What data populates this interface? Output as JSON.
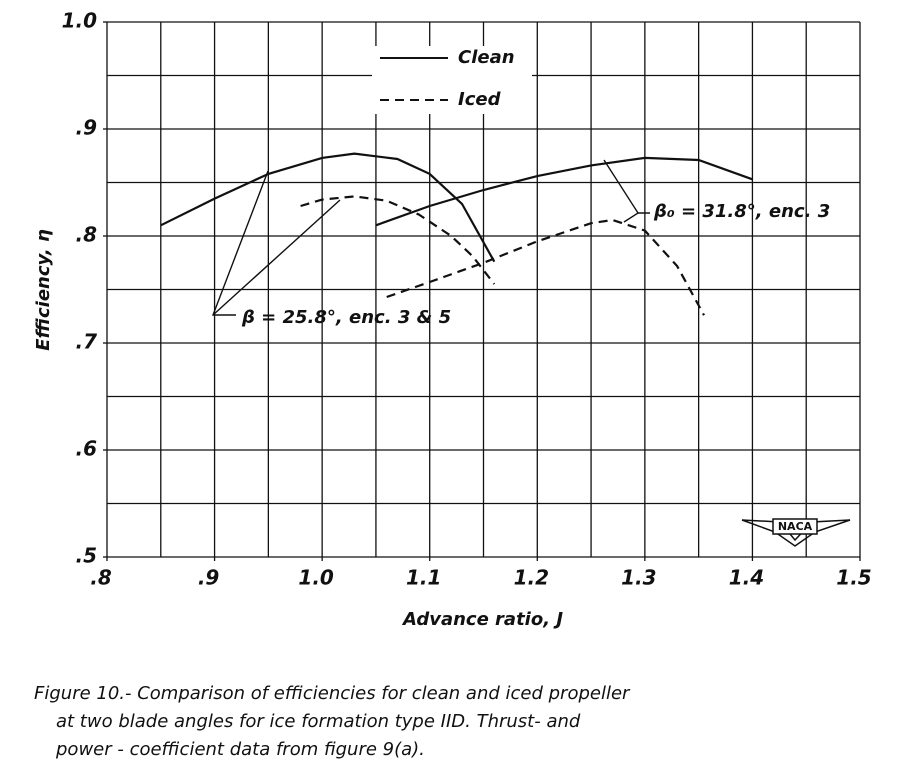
{
  "chart_data": {
    "type": "line",
    "x_label": "Advance ratio, J",
    "y_label": "Efficiency, η",
    "xlim": [
      0.8,
      1.5
    ],
    "ylim": [
      0.5,
      1.0
    ],
    "xticks": [
      {
        "value": 0.8,
        "label": ".8"
      },
      {
        "value": 0.9,
        "label": ".9"
      },
      {
        "value": 1.0,
        "label": "1.0"
      },
      {
        "value": 1.1,
        "label": "1.1"
      },
      {
        "value": 1.2,
        "label": "1.2"
      },
      {
        "value": 1.3,
        "label": "1.3"
      },
      {
        "value": 1.4,
        "label": "1.4"
      },
      {
        "value": 1.5,
        "label": "1.5"
      }
    ],
    "yticks": [
      {
        "value": 0.5,
        "label": ".5"
      },
      {
        "value": 0.6,
        "label": ".6"
      },
      {
        "value": 0.7,
        "label": ".7"
      },
      {
        "value": 0.8,
        "label": ".8"
      },
      {
        "value": 0.9,
        "label": ".9"
      },
      {
        "value": 1.0,
        "label": "1.0"
      }
    ],
    "xgrid": [
      0.8,
      0.85,
      0.9,
      0.95,
      1.0,
      1.05,
      1.1,
      1.15,
      1.2,
      1.25,
      1.3,
      1.35,
      1.4,
      1.45,
      1.5
    ],
    "ygrid": [
      0.5,
      0.55,
      0.6,
      0.65,
      0.7,
      0.75,
      0.8,
      0.85,
      0.9,
      0.95,
      1.0
    ],
    "grid": true,
    "series": [
      {
        "name": "Clean",
        "color": "#111111",
        "dash": "solid",
        "x": [
          0.85,
          0.9,
          0.95,
          1.0,
          1.03,
          1.07,
          1.1,
          1.13,
          1.16,
          null,
          1.05,
          1.1,
          1.15,
          1.2,
          1.25,
          1.3,
          1.35,
          1.4
        ],
        "values": [
          0.81,
          0.835,
          0.858,
          0.873,
          0.877,
          0.872,
          0.858,
          0.83,
          0.776,
          null,
          0.81,
          0.828,
          0.843,
          0.856,
          0.866,
          0.873,
          0.871,
          0.853
        ]
      },
      {
        "name": "Iced",
        "color": "#111111",
        "dash": "dashed",
        "x": [
          0.98,
          1.0,
          1.03,
          1.06,
          1.09,
          1.12,
          1.14,
          1.16,
          null,
          1.06,
          1.1,
          1.15,
          1.2,
          1.25,
          1.27,
          1.3,
          1.33,
          1.355
        ],
        "values": [
          0.828,
          0.834,
          0.837,
          0.833,
          0.82,
          0.8,
          0.781,
          0.755,
          null,
          0.743,
          0.757,
          0.775,
          0.795,
          0.812,
          0.815,
          0.805,
          0.772,
          0.726
        ]
      }
    ],
    "annotations": [
      "β = 25.8°, enc. 3 & 5",
      "β₀ = 31.8°, enc. 3"
    ],
    "logo": "NACA",
    "caption": [
      "Figure 10.- Comparison of efficiencies for clean and iced propeller",
      "at two blade angles for ice formation type IID. Thrust- and",
      "power - coefficient data from figure 9(a)."
    ]
  }
}
